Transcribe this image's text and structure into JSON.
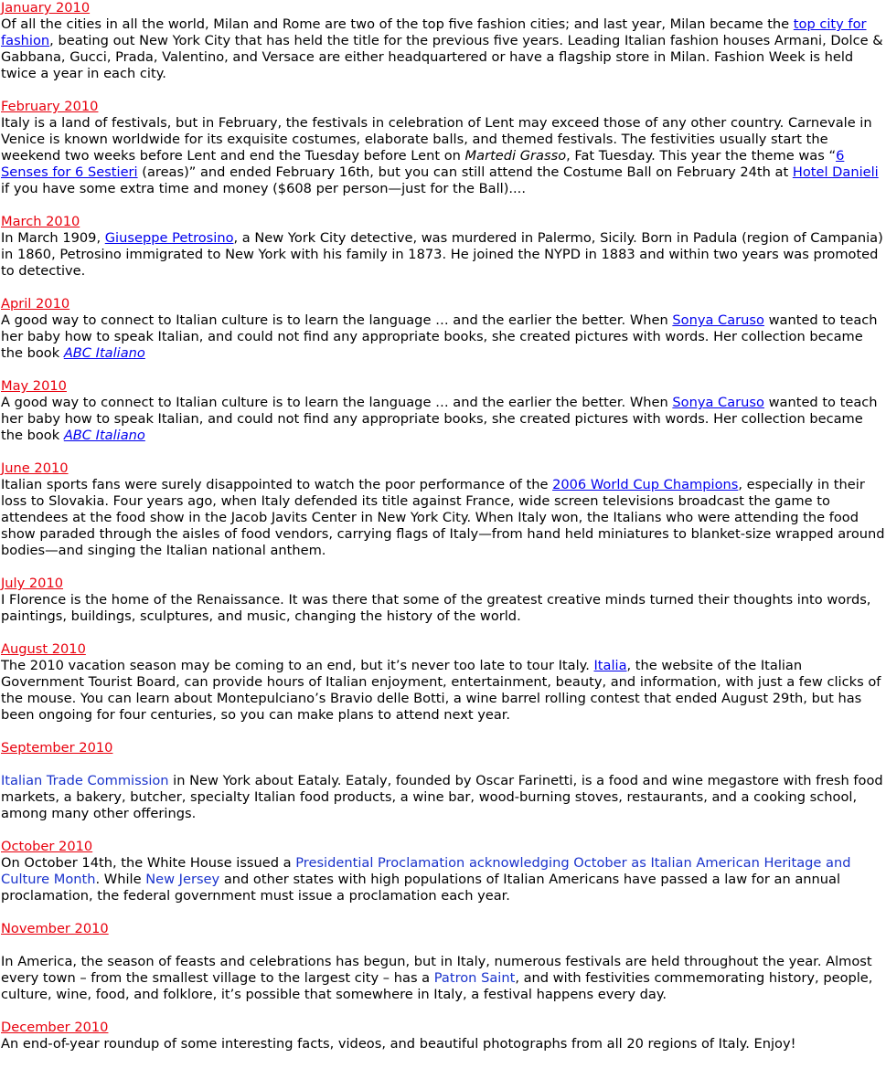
{
  "entries": [
    {
      "month": "January 2010",
      "t1": " Of all the cities in all the world, Milan and Rome are two of the top five fashion cities; and last year, Milan became the ",
      "link1": "top city for fashion",
      "t2": ", beating out New York City that has held the title for the previous five years. Leading Italian fashion houses Armani, Dolce & Gabbana, Gucci, Prada, Valentino, and Versace are either headquartered or have a flagship store in Milan. Fashion Week is held twice a year in each city."
    },
    {
      "month": "February 2010",
      "t1": " Italy is a land of festivals, but in February, the festivals in celebration of Lent may exceed those of any other country. Carnevale in Venice is known worldwide for its exquisite costumes, elaborate balls, and themed festivals. The festivities usually start the weekend two weeks before Lent and end the Tuesday before Lent on ",
      "em1": "Martedi Grasso",
      "t2": ", Fat Tuesday. This year the theme was “",
      "link1": "6 Senses for 6 Sestieri",
      "t3": " (areas)” and ended February 16th, but you can still attend the Costume Ball on February 24th at ",
      "link2": "Hotel Danieli",
      "t4": " if you have some extra time and money ($608 per person—just for the Ball)...."
    },
    {
      "month": "March 2010",
      "t1": " In March 1909, ",
      "link1": "Giuseppe Petrosino",
      "t2": ", a New York City detective, was murdered in Palermo, Sicily. Born in Padula (region of Campania) in 1860, Petrosino immigrated to New York with his family in 1873. He joined the NYPD in 1883 and within two years was promoted to detective."
    },
    {
      "month": "April 2010",
      "t1": " A good way to connect to Italian culture is to learn the language … and the earlier the better. When ",
      "link1": "Sonya Caruso",
      "t2": " wanted to teach her baby how to speak Italian, and could not find any appropriate books, she created pictures with words. Her collection became the book ",
      "link2": "ABC Italiano"
    },
    {
      "month": "May 2010",
      "t1": " A good way to connect to Italian culture is to learn the language … and the earlier the better. When ",
      "link1": "Sonya Caruso",
      "t2": " wanted to teach her baby how to speak Italian, and could not find any appropriate books, she created pictures with words. Her collection became the book ",
      "link2": "ABC Italiano"
    },
    {
      "month": "June 2010",
      "t1": " Italian sports fans were surely disappointed to watch the poor performance of the ",
      "link1": "2006 World Cup Champions",
      "t2": ", especially in their loss to Slovakia. Four years ago, when Italy defended its title against France, wide screen televisions broadcast the game to attendees at the food show in the Jacob Javits Center in New York City. When Italy won, the Italians who were attending the food show paraded through the aisles of food vendors, carrying flags of Italy—from hand held miniatures to blanket-size wrapped around bodies—and singing the Italian national anthem."
    },
    {
      "month": "July 2010",
      "t1": " I Florence is the home of the Renaissance. It was there that some of the greatest creative minds turned their thoughts into words, paintings, buildings, sculptures, and music, changing the history of the world."
    },
    {
      "month": "August 2010",
      "t1": " The 2010 vacation season may be coming to an end, but it’s never too late to tour Italy. ",
      "link1": "Italia",
      "t2": ", the website of the Italian Government Tourist Board, can provide hours of Italian enjoyment, entertainment, beauty, and information, with just a few clicks of the mouse. You can learn about Montepulciano’s Bravio delle Botti, a wine barrel rolling contest that ended August 29th, but has been ongoing for four centuries, so you can make plans to attend next year."
    },
    {
      "month": "September 2010",
      "link1": " Italian Trade Commission",
      "t1": " in New York about Eataly. Eataly, founded by Oscar Farinetti, is a food and wine megastore with fresh food markets, a bakery, butcher, specialty Italian food products, a wine bar, wood-burning stoves, restaurants, and a cooking school, among many other offerings."
    },
    {
      "month": "October 2010",
      "t1": " On October 14th, the White House issued a ",
      "link1": "Presidential Proclamation acknowledging October as Italian American Heritage and Culture Month",
      "t2": ". While ",
      "link2": "New Jersey",
      "t3": " and other states with high populations of Italian Americans have passed a law for an annual proclamation, the federal government must issue a proclamation each year."
    },
    {
      "month": "November 2010",
      "t1": " In America, the season of feasts and celebrations has begun, but in Italy, numerous festivals are held throughout the year. Almost every town – from the smallest village to the largest city – has a ",
      "link1": "Patron Saint",
      "t2": ", and with festivities commemorating history, people, culture, wine, food, and folklore, it’s possible that somewhere in Italy, a festival happens every day."
    },
    {
      "month": "December 2010",
      "t1": " An end-of-year roundup of some interesting facts, videos, and beautiful photographs from all 20 regions of Italy. Enjoy!"
    }
  ]
}
